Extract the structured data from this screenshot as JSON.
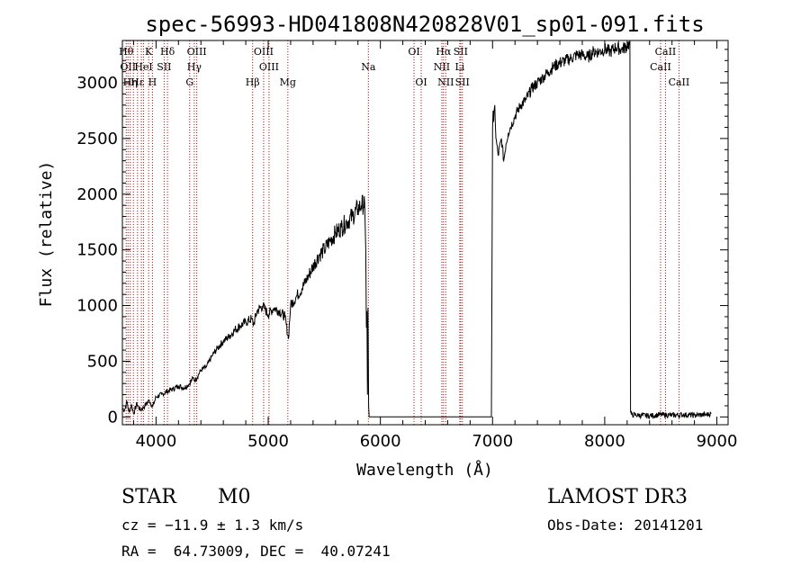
{
  "chart_data": {
    "type": "line",
    "title": "spec-56993-HD041808N420828V01_sp01-091.fits",
    "xlabel": "Wavelength (Å)",
    "ylabel": "Flux (relative)",
    "xlim": [
      3700,
      9100
    ],
    "ylim": [
      -70,
      3380
    ],
    "xticks": [
      4000,
      5000,
      6000,
      7000,
      8000,
      9000
    ],
    "yticks": [
      0,
      500,
      1000,
      1500,
      2000,
      2500,
      3000
    ],
    "series": [
      {
        "name": "flux",
        "x": [
          3700,
          3720,
          3740,
          3760,
          3780,
          3800,
          3830,
          3860,
          3900,
          3940,
          3970,
          4000,
          4050,
          4100,
          4150,
          4200,
          4250,
          4300,
          4330,
          4350,
          4400,
          4450,
          4500,
          4550,
          4600,
          4650,
          4700,
          4750,
          4800,
          4850,
          4870,
          4900,
          4950,
          5000,
          5050,
          5100,
          5150,
          5180,
          5200,
          5250,
          5300,
          5350,
          5400,
          5450,
          5500,
          5550,
          5600,
          5650,
          5700,
          5750,
          5800,
          5830,
          5860,
          5870,
          5875,
          5880,
          5885,
          5890,
          5895,
          5900,
          5920,
          6000,
          6500,
          6990,
          7000,
          7005,
          7010,
          7020,
          7030,
          7050,
          7080,
          7100,
          7120,
          7140,
          7160,
          7200,
          7250,
          7300,
          7350,
          7400,
          7450,
          7500,
          7550,
          7600,
          7650,
          7700,
          7750,
          7800,
          7850,
          7900,
          7950,
          8000,
          8050,
          8100,
          8150,
          8200,
          8210,
          8220,
          8225,
          8230,
          8240,
          8300,
          8400,
          8500,
          8600,
          8700,
          8800,
          8900,
          8950
        ],
        "y": [
          80,
          60,
          140,
          40,
          110,
          30,
          120,
          60,
          100,
          150,
          90,
          180,
          200,
          230,
          250,
          280,
          260,
          300,
          350,
          330,
          420,
          450,
          550,
          620,
          680,
          720,
          780,
          820,
          850,
          880,
          830,
          950,
          1000,
          920,
          980,
          950,
          900,
          700,
          1000,
          1080,
          1150,
          1250,
          1350,
          1450,
          1500,
          1580,
          1650,
          1700,
          1750,
          1800,
          1870,
          1900,
          1920,
          1500,
          800,
          950,
          200,
          980,
          100,
          0,
          0,
          0,
          0,
          0,
          2600,
          2750,
          2650,
          2800,
          2500,
          2350,
          2500,
          2300,
          2450,
          2550,
          2600,
          2700,
          2800,
          2850,
          2950,
          3000,
          3050,
          3100,
          3150,
          3180,
          3200,
          3220,
          3250,
          3250,
          3230,
          3280,
          3280,
          3300,
          3280,
          3320,
          3300,
          3330,
          3350,
          3340,
          3400,
          50,
          20,
          15,
          10,
          20,
          15,
          20,
          15,
          20,
          30
        ]
      }
    ],
    "spectral_lines": [
      {
        "wavelength": 3734,
        "label": "Hθ",
        "row": 0
      },
      {
        "wavelength": 3750,
        "label": "OII",
        "row": 1
      },
      {
        "wavelength": 3770,
        "label": "Hη",
        "row": 2
      },
      {
        "wavelength": 3798,
        "label": "",
        "row": 2
      },
      {
        "wavelength": 3835,
        "label": "Hε",
        "row": 2
      },
      {
        "wavelength": 3869,
        "label": "",
        "row": 2
      },
      {
        "wavelength": 3889,
        "label": "HeI",
        "row": 1
      },
      {
        "wavelength": 3934,
        "label": "K",
        "row": 0
      },
      {
        "wavelength": 3968,
        "label": "H",
        "row": 2
      },
      {
        "wavelength": 4072,
        "label": "SII",
        "row": 1
      },
      {
        "wavelength": 4102,
        "label": "Hδ",
        "row": 0
      },
      {
        "wavelength": 4300,
        "label": "G",
        "row": 2
      },
      {
        "wavelength": 4341,
        "label": "Hγ",
        "row": 1
      },
      {
        "wavelength": 4363,
        "label": "OIII",
        "row": 0
      },
      {
        "wavelength": 4861,
        "label": "Hβ",
        "row": 2
      },
      {
        "wavelength": 4959,
        "label": "OIII",
        "row": 0
      },
      {
        "wavelength": 5007,
        "label": "OIII",
        "row": 1
      },
      {
        "wavelength": 5175,
        "label": "Mg",
        "row": 2
      },
      {
        "wavelength": 5893,
        "label": "Na",
        "row": 1
      },
      {
        "wavelength": 6300,
        "label": "OI",
        "row": 0
      },
      {
        "wavelength": 6364,
        "label": "OI",
        "row": 2
      },
      {
        "wavelength": 6548,
        "label": "NII",
        "row": 1
      },
      {
        "wavelength": 6563,
        "label": "Hα",
        "row": 0
      },
      {
        "wavelength": 6583,
        "label": "NII",
        "row": 2
      },
      {
        "wavelength": 6708,
        "label": "Li",
        "row": 1
      },
      {
        "wavelength": 6716,
        "label": "SII",
        "row": 0
      },
      {
        "wavelength": 6731,
        "label": "SII",
        "row": 2
      },
      {
        "wavelength": 8498,
        "label": "CaII",
        "row": 1
      },
      {
        "wavelength": 8542,
        "label": "CaII",
        "row": 0
      },
      {
        "wavelength": 8662,
        "label": "CaII",
        "row": 2
      }
    ],
    "grid": false
  },
  "info": {
    "object_type": "STAR",
    "subclass": "M0",
    "survey": "LAMOST DR3",
    "redshift_line": "cz = −11.9 ± 1.3 km/s",
    "obs_date_line": "Obs-Date: 20141201",
    "coords_line": "RA =  64.73009, DEC =  40.07241"
  },
  "colors": {
    "line": "#000000",
    "marker": "#cc0000",
    "background": "#ffffff"
  }
}
